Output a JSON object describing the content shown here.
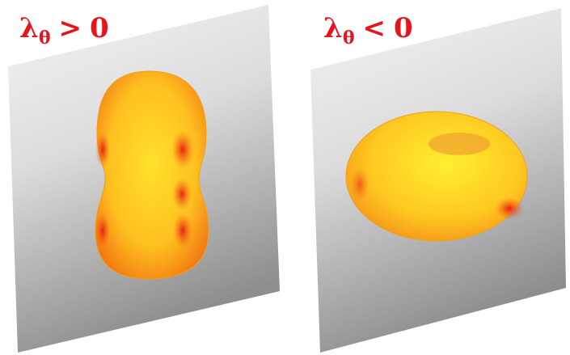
{
  "panels": [
    {
      "symbol": "λ",
      "subscript": "θ",
      "relation": ">",
      "value": "0"
    },
    {
      "symbol": "λ",
      "subscript": "θ",
      "relation": "<",
      "value": "0"
    }
  ]
}
